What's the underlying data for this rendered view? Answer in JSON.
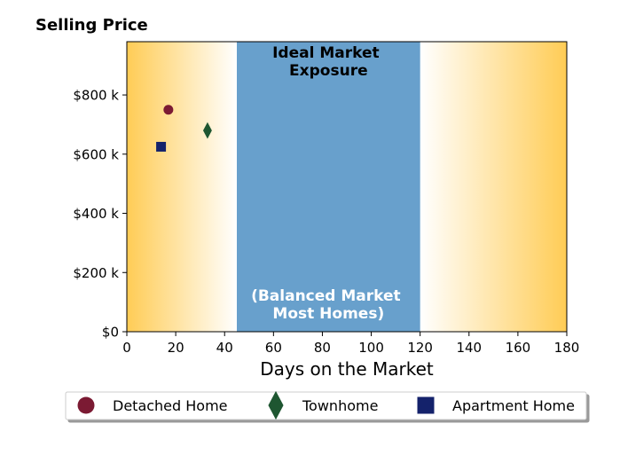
{
  "chart_data": {
    "type": "scatter",
    "title": "",
    "ylabel": "Selling Price",
    "xlabel": "Days on the Market",
    "xlim": [
      0,
      180
    ],
    "ylim": [
      0,
      980
    ],
    "x_ticks": [
      0,
      20,
      40,
      60,
      80,
      100,
      120,
      140,
      160,
      180
    ],
    "x_tick_labels": [
      "0",
      "20",
      "40",
      "60",
      "80",
      "100",
      "120",
      "140",
      "160",
      "180"
    ],
    "y_ticks": [
      0,
      200,
      400,
      600,
      800
    ],
    "y_tick_labels": [
      "$0",
      "$200 k",
      "$400 k",
      "$600 k",
      "$800 k"
    ],
    "band": {
      "x_start": 45,
      "x_end": 120,
      "color": "#68a0cc",
      "label_top_lines": [
        "Ideal Market",
        "Exposure"
      ],
      "label_bottom_lines": [
        "(Balanced Market",
        "Most Homes)"
      ]
    },
    "background_gradient": {
      "edge_color": "#ffcc55",
      "center_color": "#ffffff"
    },
    "grid": false,
    "legend_position": "bottom",
    "series": [
      {
        "name": "Detached Home",
        "marker": "circle",
        "color": "#7b1a33",
        "points": [
          {
            "x": 17,
            "y": 750
          }
        ]
      },
      {
        "name": "Townhome",
        "marker": "diamond",
        "color": "#1e5631",
        "points": [
          {
            "x": 33,
            "y": 680
          }
        ]
      },
      {
        "name": "Apartment Home",
        "marker": "square",
        "color": "#14226b",
        "points": [
          {
            "x": 14,
            "y": 625
          }
        ]
      }
    ]
  }
}
